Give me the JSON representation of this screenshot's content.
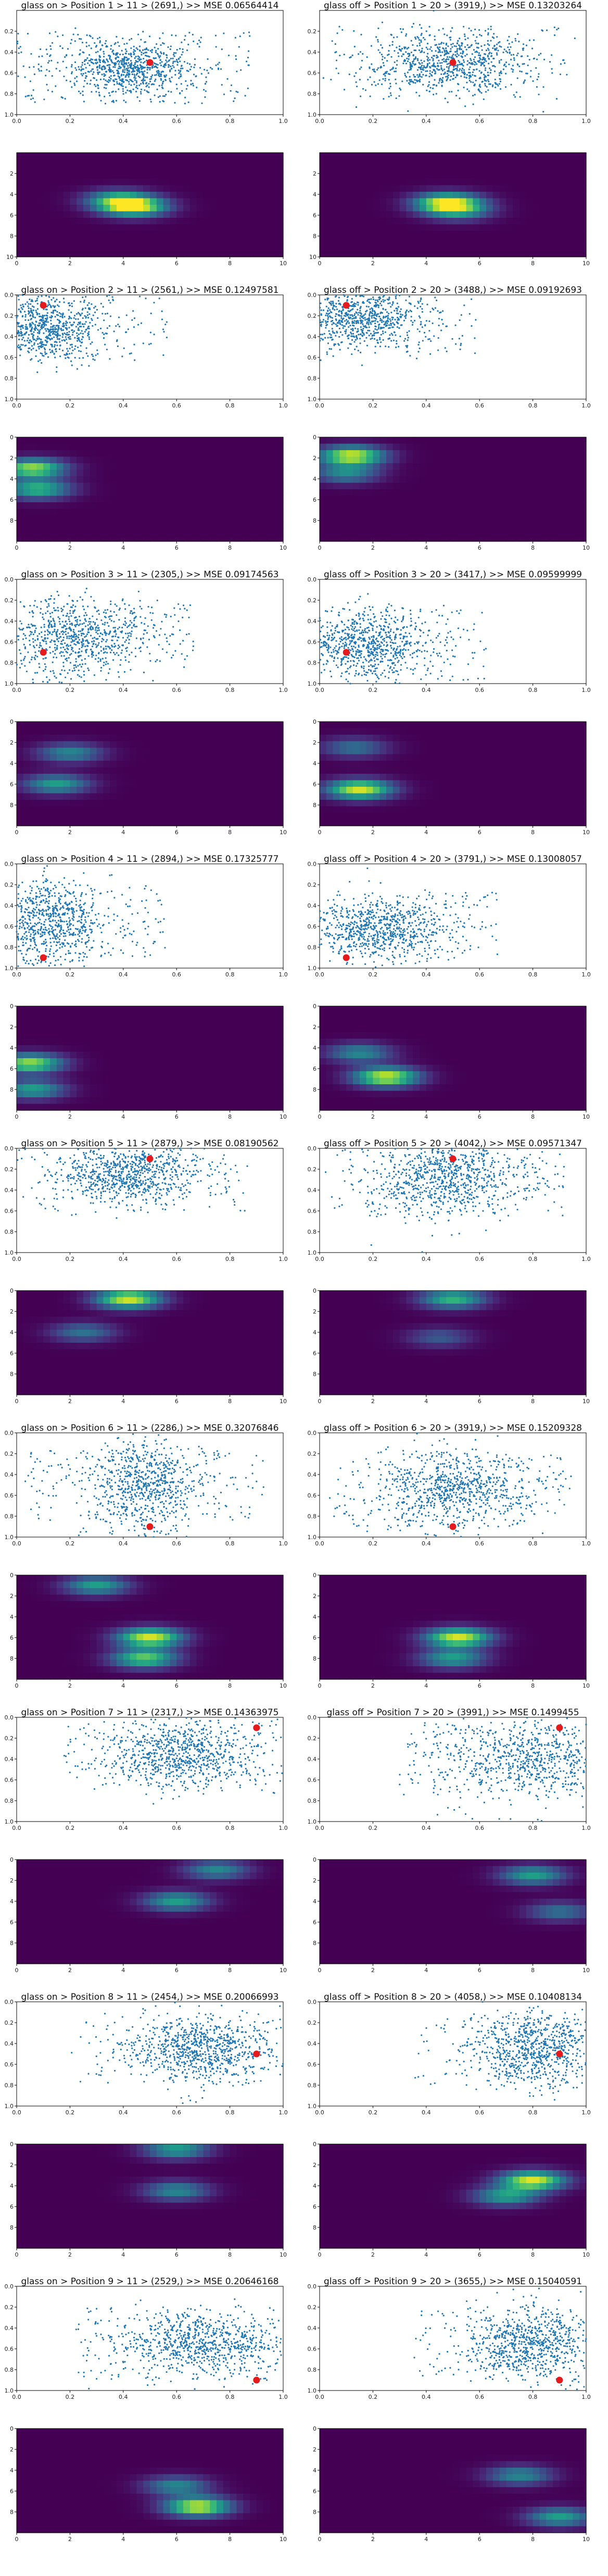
{
  "chart_data": [
    {
      "type": "scatter",
      "title": "glass on > Position 1 > 11 > (2691,) >> MSE 0.06564414",
      "target": [
        0.5,
        0.5
      ],
      "center": [
        0.43,
        0.55
      ],
      "spread": [
        0.12,
        0.12
      ],
      "xlim": [
        0,
        1
      ],
      "ylim": [
        1,
        0
      ],
      "xticks": [
        "0.0",
        "0.2",
        "0.4",
        "0.6",
        "0.8",
        "1.0"
      ],
      "yticks": [
        "0.2",
        "0.4",
        "0.6",
        "0.8",
        "1.0"
      ]
    },
    {
      "type": "scatter",
      "title": "glass off > Position 1 > 20 > (3919,) >> MSE 0.13203264",
      "target": [
        0.5,
        0.5
      ],
      "center": [
        0.48,
        0.5
      ],
      "spread": [
        0.15,
        0.15
      ],
      "xlim": [
        0,
        1
      ],
      "ylim": [
        1,
        0
      ],
      "xticks": [
        "0.0",
        "0.2",
        "0.4",
        "0.6",
        "0.8",
        "1.0"
      ],
      "yticks": [
        "0.2",
        "0.4",
        "0.6",
        "0.8",
        "1.0"
      ]
    },
    {
      "type": "heatmap",
      "hotspots": [
        [
          4.4,
          5.2,
          1.0
        ],
        [
          3.8,
          4.5,
          0.6
        ]
      ],
      "xticks": [
        "0",
        "2",
        "4",
        "6",
        "8",
        "10"
      ],
      "yticks": [
        "2",
        "4",
        "6",
        "8",
        "10"
      ],
      "xlim": [
        0,
        10
      ],
      "ylim": [
        10,
        0
      ]
    },
    {
      "type": "heatmap",
      "hotspots": [
        [
          4.8,
          4.8,
          1.0
        ],
        [
          5.2,
          5.6,
          0.5
        ]
      ],
      "xticks": [
        "0",
        "2",
        "4",
        "6",
        "8",
        "10"
      ],
      "yticks": [
        "2",
        "4",
        "6",
        "8",
        "10"
      ],
      "xlim": [
        0,
        10
      ],
      "ylim": [
        10,
        0
      ]
    },
    {
      "type": "scatter",
      "title": "glass on > Position 2 > 11 > (2561,) >> MSE 0.12497581",
      "target": [
        0.1,
        0.1
      ],
      "center": [
        0.12,
        0.3
      ],
      "spread": [
        0.1,
        0.16
      ],
      "xlim": [
        0,
        1
      ],
      "ylim": [
        1,
        0
      ],
      "xticks": [
        "0.0",
        "0.2",
        "0.4",
        "0.6",
        "0.8",
        "1.0"
      ],
      "yticks": [
        "0.0",
        "0.2",
        "0.4",
        "0.6",
        "0.8",
        "1.0"
      ]
    },
    {
      "type": "scatter",
      "title": "glass off > Position 2 > 20 > (3488,) >> MSE 0.09192693",
      "target": [
        0.1,
        0.1
      ],
      "center": [
        0.15,
        0.22
      ],
      "spread": [
        0.12,
        0.15
      ],
      "xlim": [
        0,
        1
      ],
      "ylim": [
        1,
        0
      ],
      "xticks": [
        "0.0",
        "0.2",
        "0.4",
        "0.6",
        "0.8",
        "1.0"
      ],
      "yticks": [
        "0.0",
        "0.2",
        "0.4",
        "0.6",
        "0.8",
        "1.0"
      ]
    },
    {
      "type": "heatmap",
      "hotspots": [
        [
          0.6,
          3.0,
          0.9
        ],
        [
          0.8,
          5.0,
          0.7
        ]
      ],
      "xticks": [
        "0",
        "2",
        "4",
        "6",
        "8",
        "10"
      ],
      "yticks": [
        "0",
        "2",
        "4",
        "6",
        "8"
      ],
      "xlim": [
        0,
        10
      ],
      "ylim": [
        10,
        0
      ]
    },
    {
      "type": "heatmap",
      "hotspots": [
        [
          1.2,
          1.8,
          1.0
        ],
        [
          1.0,
          3.5,
          0.5
        ]
      ],
      "xticks": [
        "0",
        "2",
        "4",
        "6",
        "8",
        "10"
      ],
      "yticks": [
        "0",
        "2",
        "4",
        "6",
        "8"
      ],
      "xlim": [
        0,
        10
      ],
      "ylim": [
        10,
        0
      ]
    },
    {
      "type": "scatter",
      "title": "glass on > Position 3 > 11 > (2305,) >> MSE 0.09174563",
      "target": [
        0.1,
        0.7
      ],
      "center": [
        0.22,
        0.55
      ],
      "spread": [
        0.14,
        0.18
      ],
      "xlim": [
        0,
        1
      ],
      "ylim": [
        1,
        0
      ],
      "xticks": [
        "0.0",
        "0.2",
        "0.4",
        "0.6",
        "0.8",
        "1.0"
      ],
      "yticks": [
        "0.0",
        "0.2",
        "0.4",
        "0.6",
        "0.8",
        "1.0"
      ]
    },
    {
      "type": "scatter",
      "title": "glass off > Position 3 > 20 > (3417,) >> MSE 0.09599999",
      "target": [
        0.1,
        0.7
      ],
      "center": [
        0.17,
        0.62
      ],
      "spread": [
        0.12,
        0.15
      ],
      "xlim": [
        0,
        1
      ],
      "ylim": [
        1,
        0
      ],
      "xticks": [
        "0.0",
        "0.2",
        "0.4",
        "0.6",
        "0.8",
        "1.0"
      ],
      "yticks": [
        "0.0",
        "0.2",
        "0.4",
        "0.6",
        "0.8",
        "1.0"
      ]
    },
    {
      "type": "heatmap",
      "hotspots": [
        [
          1.5,
          6.0,
          0.6
        ],
        [
          2.0,
          3.0,
          0.5
        ]
      ],
      "xticks": [
        "0",
        "2",
        "4",
        "6",
        "8",
        "10"
      ],
      "yticks": [
        "0",
        "2",
        "4",
        "6",
        "8"
      ],
      "xlim": [
        0,
        10
      ],
      "ylim": [
        10,
        0
      ]
    },
    {
      "type": "heatmap",
      "hotspots": [
        [
          1.5,
          6.5,
          1.0
        ],
        [
          1.3,
          2.5,
          0.4
        ]
      ],
      "xticks": [
        "0",
        "2",
        "4",
        "6",
        "8",
        "10"
      ],
      "yticks": [
        "0",
        "2",
        "4",
        "6",
        "8"
      ],
      "xlim": [
        0,
        10
      ],
      "ylim": [
        10,
        0
      ]
    },
    {
      "type": "scatter",
      "title": "glass on > Position 4 > 11 > (2894,) >> MSE 0.17325777",
      "target": [
        0.1,
        0.9
      ],
      "center": [
        0.12,
        0.55
      ],
      "spread": [
        0.1,
        0.2
      ],
      "xlim": [
        0,
        1
      ],
      "ylim": [
        1,
        0
      ],
      "xticks": [
        "0.0",
        "0.2",
        "0.4",
        "0.6",
        "0.8",
        "1.0"
      ],
      "yticks": [
        "0.0",
        "0.2",
        "0.4",
        "0.6",
        "0.8",
        "1.0"
      ]
    },
    {
      "type": "scatter",
      "title": "glass off > Position 4 > 20 > (3791,) >> MSE 0.13008057",
      "target": [
        0.1,
        0.9
      ],
      "center": [
        0.22,
        0.62
      ],
      "spread": [
        0.14,
        0.15
      ],
      "xlim": [
        0,
        1
      ],
      "ylim": [
        1,
        0
      ],
      "xticks": [
        "0.0",
        "0.2",
        "0.4",
        "0.6",
        "0.8",
        "1.0"
      ],
      "yticks": [
        "0.0",
        "0.2",
        "0.4",
        "0.6",
        "0.8",
        "1.0"
      ]
    },
    {
      "type": "heatmap",
      "hotspots": [
        [
          0.5,
          5.5,
          0.9
        ],
        [
          0.6,
          8.0,
          0.6
        ]
      ],
      "xticks": [
        "0",
        "2",
        "4",
        "6",
        "8",
        "10"
      ],
      "yticks": [
        "0",
        "2",
        "4",
        "6",
        "8"
      ],
      "xlim": [
        0,
        10
      ],
      "ylim": [
        10,
        0
      ]
    },
    {
      "type": "heatmap",
      "hotspots": [
        [
          2.5,
          6.8,
          1.0
        ],
        [
          1.5,
          4.5,
          0.5
        ]
      ],
      "xticks": [
        "0",
        "2",
        "4",
        "6",
        "8",
        "10"
      ],
      "yticks": [
        "0",
        "2",
        "4",
        "6",
        "8"
      ],
      "xlim": [
        0,
        10
      ],
      "ylim": [
        10,
        0
      ]
    },
    {
      "type": "scatter",
      "title": "glass on > Position 5 > 11 > (2879,) >> MSE 0.08190562",
      "target": [
        0.5,
        0.1
      ],
      "center": [
        0.42,
        0.25
      ],
      "spread": [
        0.14,
        0.14
      ],
      "xlim": [
        0,
        1
      ],
      "ylim": [
        1,
        0
      ],
      "xticks": [
        "0.0",
        "0.2",
        "0.4",
        "0.6",
        "0.8",
        "1.0"
      ],
      "yticks": [
        "0.0",
        "0.2",
        "0.4",
        "0.6",
        "0.8",
        "1.0"
      ]
    },
    {
      "type": "scatter",
      "title": "glass off > Position 5 > 20 > (4042,) >> MSE 0.09571347",
      "target": [
        0.5,
        0.1
      ],
      "center": [
        0.48,
        0.3
      ],
      "spread": [
        0.14,
        0.18
      ],
      "xlim": [
        0,
        1
      ],
      "ylim": [
        1,
        0
      ],
      "xticks": [
        "0.0",
        "0.2",
        "0.4",
        "0.6",
        "0.8",
        "1.0"
      ],
      "yticks": [
        "0.0",
        "0.2",
        "0.4",
        "0.6",
        "0.8",
        "1.0"
      ]
    },
    {
      "type": "heatmap",
      "hotspots": [
        [
          4.2,
          0.8,
          1.0
        ],
        [
          2.5,
          4.0,
          0.4
        ]
      ],
      "xticks": [
        "0",
        "2",
        "4",
        "6",
        "8",
        "10"
      ],
      "yticks": [
        "0",
        "2",
        "4",
        "6",
        "8"
      ],
      "xlim": [
        0,
        10
      ],
      "ylim": [
        10,
        0
      ]
    },
    {
      "type": "heatmap",
      "hotspots": [
        [
          5.0,
          0.8,
          0.7
        ],
        [
          4.5,
          4.5,
          0.3
        ]
      ],
      "xticks": [
        "0",
        "2",
        "4",
        "6",
        "8",
        "10"
      ],
      "yticks": [
        "0",
        "2",
        "4",
        "6",
        "8"
      ],
      "xlim": [
        0,
        10
      ],
      "ylim": [
        10,
        0
      ]
    },
    {
      "type": "scatter",
      "title": "glass on > Position 6 > 11 > (2286,) >> MSE 0.32076846",
      "target": [
        0.5,
        0.9
      ],
      "center": [
        0.48,
        0.5
      ],
      "spread": [
        0.1,
        0.25
      ],
      "xlim": [
        0,
        1
      ],
      "ylim": [
        1,
        0
      ],
      "xticks": [
        "0.0",
        "0.2",
        "0.4",
        "0.6",
        "0.8",
        "1.0"
      ],
      "yticks": [
        "0.0",
        "0.2",
        "0.4",
        "0.6",
        "0.8",
        "1.0"
      ]
    },
    {
      "type": "scatter",
      "title": "glass off > Position 6 > 20 > (3919,) >> MSE 0.15209328",
      "target": [
        0.5,
        0.9
      ],
      "center": [
        0.5,
        0.55
      ],
      "spread": [
        0.14,
        0.18
      ],
      "xlim": [
        0,
        1
      ],
      "ylim": [
        1,
        0
      ],
      "xticks": [
        "0.0",
        "0.2",
        "0.4",
        "0.6",
        "0.8",
        "1.0"
      ],
      "yticks": [
        "0.0",
        "0.2",
        "0.4",
        "0.6",
        "0.8",
        "1.0"
      ]
    },
    {
      "type": "heatmap",
      "hotspots": [
        [
          5.0,
          6.0,
          1.0
        ],
        [
          4.8,
          8.0,
          0.8
        ],
        [
          3.0,
          1.0,
          0.6
        ]
      ],
      "xticks": [
        "0",
        "2",
        "4",
        "6",
        "8",
        "10"
      ],
      "yticks": [
        "0",
        "2",
        "4",
        "6",
        "8"
      ],
      "xlim": [
        0,
        10
      ],
      "ylim": [
        10,
        0
      ]
    },
    {
      "type": "heatmap",
      "hotspots": [
        [
          5.2,
          6.0,
          1.0
        ],
        [
          5.0,
          8.0,
          0.6
        ]
      ],
      "xticks": [
        "0",
        "2",
        "4",
        "6",
        "8",
        "10"
      ],
      "yticks": [
        "0",
        "2",
        "4",
        "6",
        "8"
      ],
      "xlim": [
        0,
        10
      ],
      "ylim": [
        10,
        0
      ]
    },
    {
      "type": "scatter",
      "title": "glass on > Position 7 > 11 > (2317,) >> MSE 0.14363975",
      "target": [
        0.9,
        0.1
      ],
      "center": [
        0.62,
        0.35
      ],
      "spread": [
        0.14,
        0.16
      ],
      "xlim": [
        0,
        1
      ],
      "ylim": [
        1,
        0
      ],
      "xticks": [
        "0.0",
        "0.2",
        "0.4",
        "0.6",
        "0.8",
        "1.0"
      ],
      "yticks": [
        "0.0",
        "0.2",
        "0.4",
        "0.6",
        "0.8",
        "1.0"
      ]
    },
    {
      "type": "scatter",
      "title": "glass off > Position 7 > 20 > (3991,) >> MSE 0.1499455",
      "target": [
        0.9,
        0.1
      ],
      "center": [
        0.78,
        0.4
      ],
      "spread": [
        0.18,
        0.2
      ],
      "xlim": [
        0,
        1
      ],
      "ylim": [
        1,
        0
      ],
      "xticks": [
        "0.0",
        "0.2",
        "0.4",
        "0.6",
        "0.8",
        "1.0"
      ],
      "yticks": [
        "0.0",
        "0.2",
        "0.4",
        "0.6",
        "0.8",
        "1.0"
      ]
    },
    {
      "type": "heatmap",
      "hotspots": [
        [
          6.0,
          4.0,
          0.6
        ],
        [
          7.5,
          1.0,
          0.5
        ]
      ],
      "xticks": [
        "0",
        "2",
        "4",
        "6",
        "8",
        "10"
      ],
      "yticks": [
        "0",
        "2",
        "4",
        "6",
        "8"
      ],
      "xlim": [
        0,
        10
      ],
      "ylim": [
        10,
        0
      ]
    },
    {
      "type": "heatmap",
      "hotspots": [
        [
          8.0,
          1.5,
          0.6
        ],
        [
          9.0,
          5.0,
          0.4
        ]
      ],
      "xticks": [
        "0",
        "2",
        "4",
        "6",
        "8",
        "10"
      ],
      "yticks": [
        "0",
        "2",
        "4",
        "6",
        "8"
      ],
      "xlim": [
        0,
        10
      ],
      "ylim": [
        10,
        0
      ]
    },
    {
      "type": "scatter",
      "title": "glass on > Position 8 > 11 > (2454,) >> MSE 0.20066993",
      "target": [
        0.9,
        0.5
      ],
      "center": [
        0.68,
        0.45
      ],
      "spread": [
        0.14,
        0.16
      ],
      "xlim": [
        0,
        1
      ],
      "ylim": [
        1,
        0
      ],
      "xticks": [
        "0.0",
        "0.2",
        "0.4",
        "0.6",
        "0.8",
        "1.0"
      ],
      "yticks": [
        "0.0",
        "0.2",
        "0.4",
        "0.6",
        "0.8",
        "1.0"
      ]
    },
    {
      "type": "scatter",
      "title": "glass off > Position 8 > 20 > (4058,) >> MSE 0.10408134",
      "target": [
        0.9,
        0.5
      ],
      "center": [
        0.8,
        0.45
      ],
      "spread": [
        0.12,
        0.18
      ],
      "xlim": [
        0,
        1
      ],
      "ylim": [
        1,
        0
      ],
      "xticks": [
        "0.0",
        "0.2",
        "0.4",
        "0.6",
        "0.8",
        "1.0"
      ],
      "yticks": [
        "0.0",
        "0.2",
        "0.4",
        "0.6",
        "0.8",
        "1.0"
      ]
    },
    {
      "type": "heatmap",
      "hotspots": [
        [
          6.0,
          0.5,
          0.6
        ],
        [
          6.0,
          4.5,
          0.5
        ]
      ],
      "xticks": [
        "0",
        "2",
        "4",
        "6",
        "8",
        "10"
      ],
      "yticks": [
        "0",
        "2",
        "4",
        "6",
        "8"
      ],
      "xlim": [
        0,
        10
      ],
      "ylim": [
        10,
        0
      ]
    },
    {
      "type": "heatmap",
      "hotspots": [
        [
          8.0,
          3.5,
          1.0
        ],
        [
          7.0,
          5.0,
          0.6
        ]
      ],
      "xticks": [
        "0",
        "2",
        "4",
        "6",
        "8",
        "10"
      ],
      "yticks": [
        "0",
        "2",
        "4",
        "6",
        "8"
      ],
      "xlim": [
        0,
        10
      ],
      "ylim": [
        10,
        0
      ]
    },
    {
      "type": "scatter",
      "title": "glass on > Position 9 > 11 > (2529,) >> MSE 0.20646168",
      "target": [
        0.9,
        0.9
      ],
      "center": [
        0.68,
        0.55
      ],
      "spread": [
        0.15,
        0.15
      ],
      "xlim": [
        0,
        1
      ],
      "ylim": [
        1,
        0
      ],
      "xticks": [
        "0.0",
        "0.2",
        "0.4",
        "0.6",
        "0.8",
        "1.0"
      ],
      "yticks": [
        "0.0",
        "0.2",
        "0.4",
        "0.6",
        "0.8",
        "1.0"
      ]
    },
    {
      "type": "scatter",
      "title": "glass off > Position 9 > 20 > (3655,) >> MSE 0.15040591",
      "target": [
        0.9,
        0.9
      ],
      "center": [
        0.8,
        0.55
      ],
      "spread": [
        0.12,
        0.18
      ],
      "xlim": [
        0,
        1
      ],
      "ylim": [
        1,
        0
      ],
      "xticks": [
        "0.0",
        "0.2",
        "0.4",
        "0.6",
        "0.8",
        "1.0"
      ],
      "yticks": [
        "0.0",
        "0.2",
        "0.4",
        "0.6",
        "0.8",
        "1.0"
      ]
    },
    {
      "type": "heatmap",
      "hotspots": [
        [
          6.8,
          7.5,
          1.0
        ],
        [
          6.0,
          5.5,
          0.5
        ]
      ],
      "xticks": [
        "0",
        "2",
        "4",
        "6",
        "8",
        "10"
      ],
      "yticks": [
        "0",
        "2",
        "4",
        "6",
        "8"
      ],
      "xlim": [
        0,
        10
      ],
      "ylim": [
        10,
        0
      ]
    },
    {
      "type": "heatmap",
      "hotspots": [
        [
          9.0,
          8.5,
          0.6
        ],
        [
          7.5,
          4.5,
          0.5
        ]
      ],
      "xticks": [
        "0",
        "2",
        "4",
        "6",
        "8",
        "10"
      ],
      "yticks": [
        "0",
        "2",
        "4",
        "6",
        "8"
      ],
      "xlim": [
        0,
        10
      ],
      "ylim": [
        10,
        0
      ]
    }
  ],
  "colors": {
    "points": "#1f77b4",
    "target": "#e41a1c",
    "viridis": [
      "#440154",
      "#482878",
      "#3e4a89",
      "#31688e",
      "#26828e",
      "#1f9e89",
      "#35b779",
      "#6ece58",
      "#b5de2b",
      "#fde725"
    ]
  }
}
